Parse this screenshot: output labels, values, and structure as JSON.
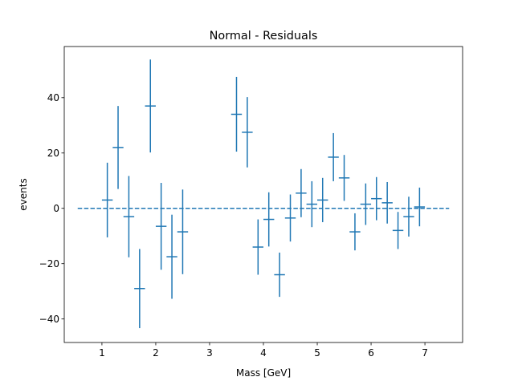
{
  "chart_data": {
    "type": "scatter",
    "title": "Normal - Residuals",
    "xlabel": "Mass [GeV]",
    "ylabel": "events",
    "xlim": [
      0.3,
      7.7
    ],
    "ylim": [
      -48.5,
      58.5
    ],
    "xticks": [
      1,
      2,
      3,
      4,
      5,
      6,
      7
    ],
    "yticks": [
      -40,
      -20,
      0,
      20,
      40
    ],
    "grid": false,
    "legend": "none",
    "color": "#1f77b4",
    "x_halfwidth": 0.1,
    "zero_line": {
      "y": 0,
      "x_from": 0.55,
      "x_to": 7.45,
      "style": "dashed"
    },
    "points": [
      {
        "x": 1.1,
        "y": 3.0,
        "err": 13.5
      },
      {
        "x": 1.3,
        "y": 22.0,
        "err": 15.0
      },
      {
        "x": 1.5,
        "y": -3.0,
        "err": 14.7
      },
      {
        "x": 1.7,
        "y": -29.0,
        "err": 14.3
      },
      {
        "x": 1.9,
        "y": 37.0,
        "err": 16.8
      },
      {
        "x": 2.1,
        "y": -6.5,
        "err": 15.7
      },
      {
        "x": 2.3,
        "y": -17.5,
        "err": 15.2
      },
      {
        "x": 2.5,
        "y": -8.5,
        "err": 15.3
      },
      {
        "x": 3.5,
        "y": 34.0,
        "err": 13.5
      },
      {
        "x": 3.7,
        "y": 27.5,
        "err": 12.7
      },
      {
        "x": 3.9,
        "y": -14.0,
        "err": 10.0
      },
      {
        "x": 4.1,
        "y": -4.0,
        "err": 9.8
      },
      {
        "x": 4.3,
        "y": -24.0,
        "err": 8.0
      },
      {
        "x": 4.5,
        "y": -3.5,
        "err": 8.5
      },
      {
        "x": 4.7,
        "y": 5.5,
        "err": 8.7
      },
      {
        "x": 4.9,
        "y": 1.5,
        "err": 8.3
      },
      {
        "x": 5.1,
        "y": 3.0,
        "err": 8.0
      },
      {
        "x": 5.3,
        "y": 18.5,
        "err": 8.7
      },
      {
        "x": 5.5,
        "y": 11.0,
        "err": 8.3
      },
      {
        "x": 5.7,
        "y": -8.5,
        "err": 6.7
      },
      {
        "x": 5.9,
        "y": 1.5,
        "err": 7.5
      },
      {
        "x": 6.1,
        "y": 3.5,
        "err": 7.8
      },
      {
        "x": 6.3,
        "y": 2.0,
        "err": 7.5
      },
      {
        "x": 6.5,
        "y": -8.0,
        "err": 6.7
      },
      {
        "x": 6.7,
        "y": -3.0,
        "err": 7.2
      },
      {
        "x": 6.9,
        "y": 0.5,
        "err": 7.0
      }
    ]
  }
}
